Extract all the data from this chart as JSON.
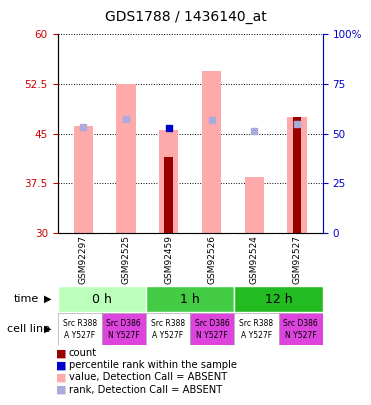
{
  "title": "GDS1788 / 1436140_at",
  "samples": [
    "GSM92297",
    "GSM92525",
    "GSM92459",
    "GSM92526",
    "GSM92524",
    "GSM92527"
  ],
  "ylim_left": [
    30,
    60
  ],
  "ylim_right": [
    0,
    100
  ],
  "yticks_left": [
    30,
    37.5,
    45,
    52.5,
    60
  ],
  "yticks_right": [
    0,
    25,
    50,
    75,
    100
  ],
  "ytick_labels_left": [
    "30",
    "37.5",
    "45",
    "52.5",
    "60"
  ],
  "ytick_labels_right": [
    "0",
    "25",
    "50",
    "75",
    "100%"
  ],
  "pink_bar_tops": [
    46.2,
    52.5,
    45.5,
    54.5,
    38.5,
    47.5
  ],
  "red_bar_tops": [
    30,
    30,
    41.5,
    30,
    30,
    47.5
  ],
  "blue_sq_y": [
    46.3,
    47.5,
    45.8,
    47.3,
    45.5,
    46.7
  ],
  "light_blue_sq_y": [
    46.0,
    47.2,
    -999,
    47.1,
    45.4,
    46.5
  ],
  "pink_bar_color": "#ffaaaa",
  "red_bar_color": "#990000",
  "blue_sq_color": "#0000cc",
  "light_blue_sq_color": "#aaaadd",
  "time_labels": [
    "0 h",
    "1 h",
    "12 h"
  ],
  "time_colors": [
    "#bbffbb",
    "#44cc44",
    "#22bb22"
  ],
  "cell_line_labels": [
    [
      "Src R388",
      "A Y527F"
    ],
    [
      "Src D386",
      "N Y527F"
    ],
    [
      "Src R388",
      "A Y527F"
    ],
    [
      "Src D386",
      "N Y527F"
    ],
    [
      "Src R388",
      "A Y527F"
    ],
    [
      "Src D386",
      "N Y527F"
    ]
  ],
  "cell_line_colors": [
    "#ffffff",
    "#dd44dd",
    "#ffffff",
    "#dd44dd",
    "#ffffff",
    "#dd44dd"
  ],
  "legend_items": [
    {
      "label": "count",
      "color": "#990000"
    },
    {
      "label": "percentile rank within the sample",
      "color": "#0000cc"
    },
    {
      "label": "value, Detection Call = ABSENT",
      "color": "#ffaaaa"
    },
    {
      "label": "rank, Detection Call = ABSENT",
      "color": "#aaaadd"
    }
  ],
  "bg_color": "#ffffff",
  "xlabel_color": "#cc0000",
  "ylabel_right_color": "#0000cc",
  "sample_bg": "#cccccc"
}
